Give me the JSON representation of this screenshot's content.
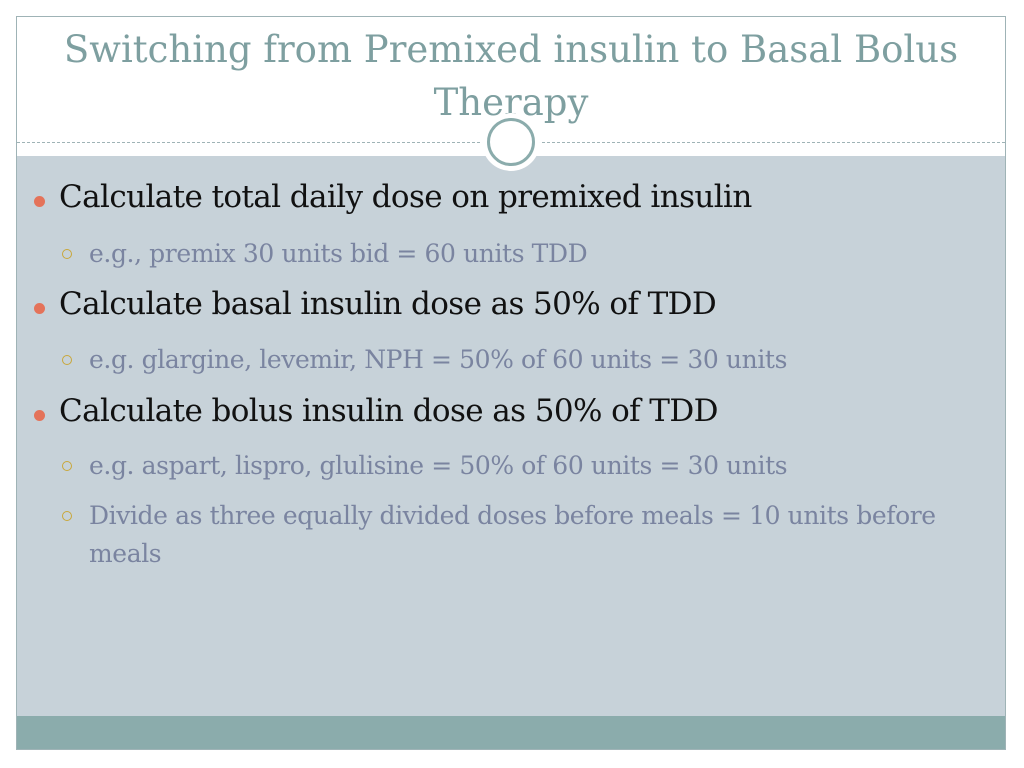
{
  "slide": {
    "title": "Switching from Premixed insulin to Basal Bolus Therapy",
    "bullets": [
      {
        "text": "Calculate total daily dose on premixed insulin",
        "subs": [
          "e.g., premix 30 units bid = 60 units TDD"
        ]
      },
      {
        "text": "Calculate basal insulin dose as 50% of TDD",
        "subs": [
          "e.g. glargine, levemir, NPH = 50% of 60 units = 30 units"
        ]
      },
      {
        "text": "Calculate bolus insulin dose as 50% of TDD",
        "subs": [
          "e.g. aspart, lispro, glulisine = 50% of 60 units = 30 units",
          "Divide as three equally divided doses before meals = 10 units before meals"
        ]
      }
    ]
  },
  "colors": {
    "title": "#7e9fa0",
    "content_background": "#c7d2d9",
    "footer_bar": "#8bacac",
    "level1_bullet": "#e4735a",
    "level2_bullet": "#c9a73a",
    "level2_text": "#7a84a0"
  },
  "icons": {
    "level1_bullet": "filled-circle-bullet-icon",
    "level2_bullet": "hollow-circle-bullet-icon",
    "title_ornament": "ring-ornament-icon"
  }
}
